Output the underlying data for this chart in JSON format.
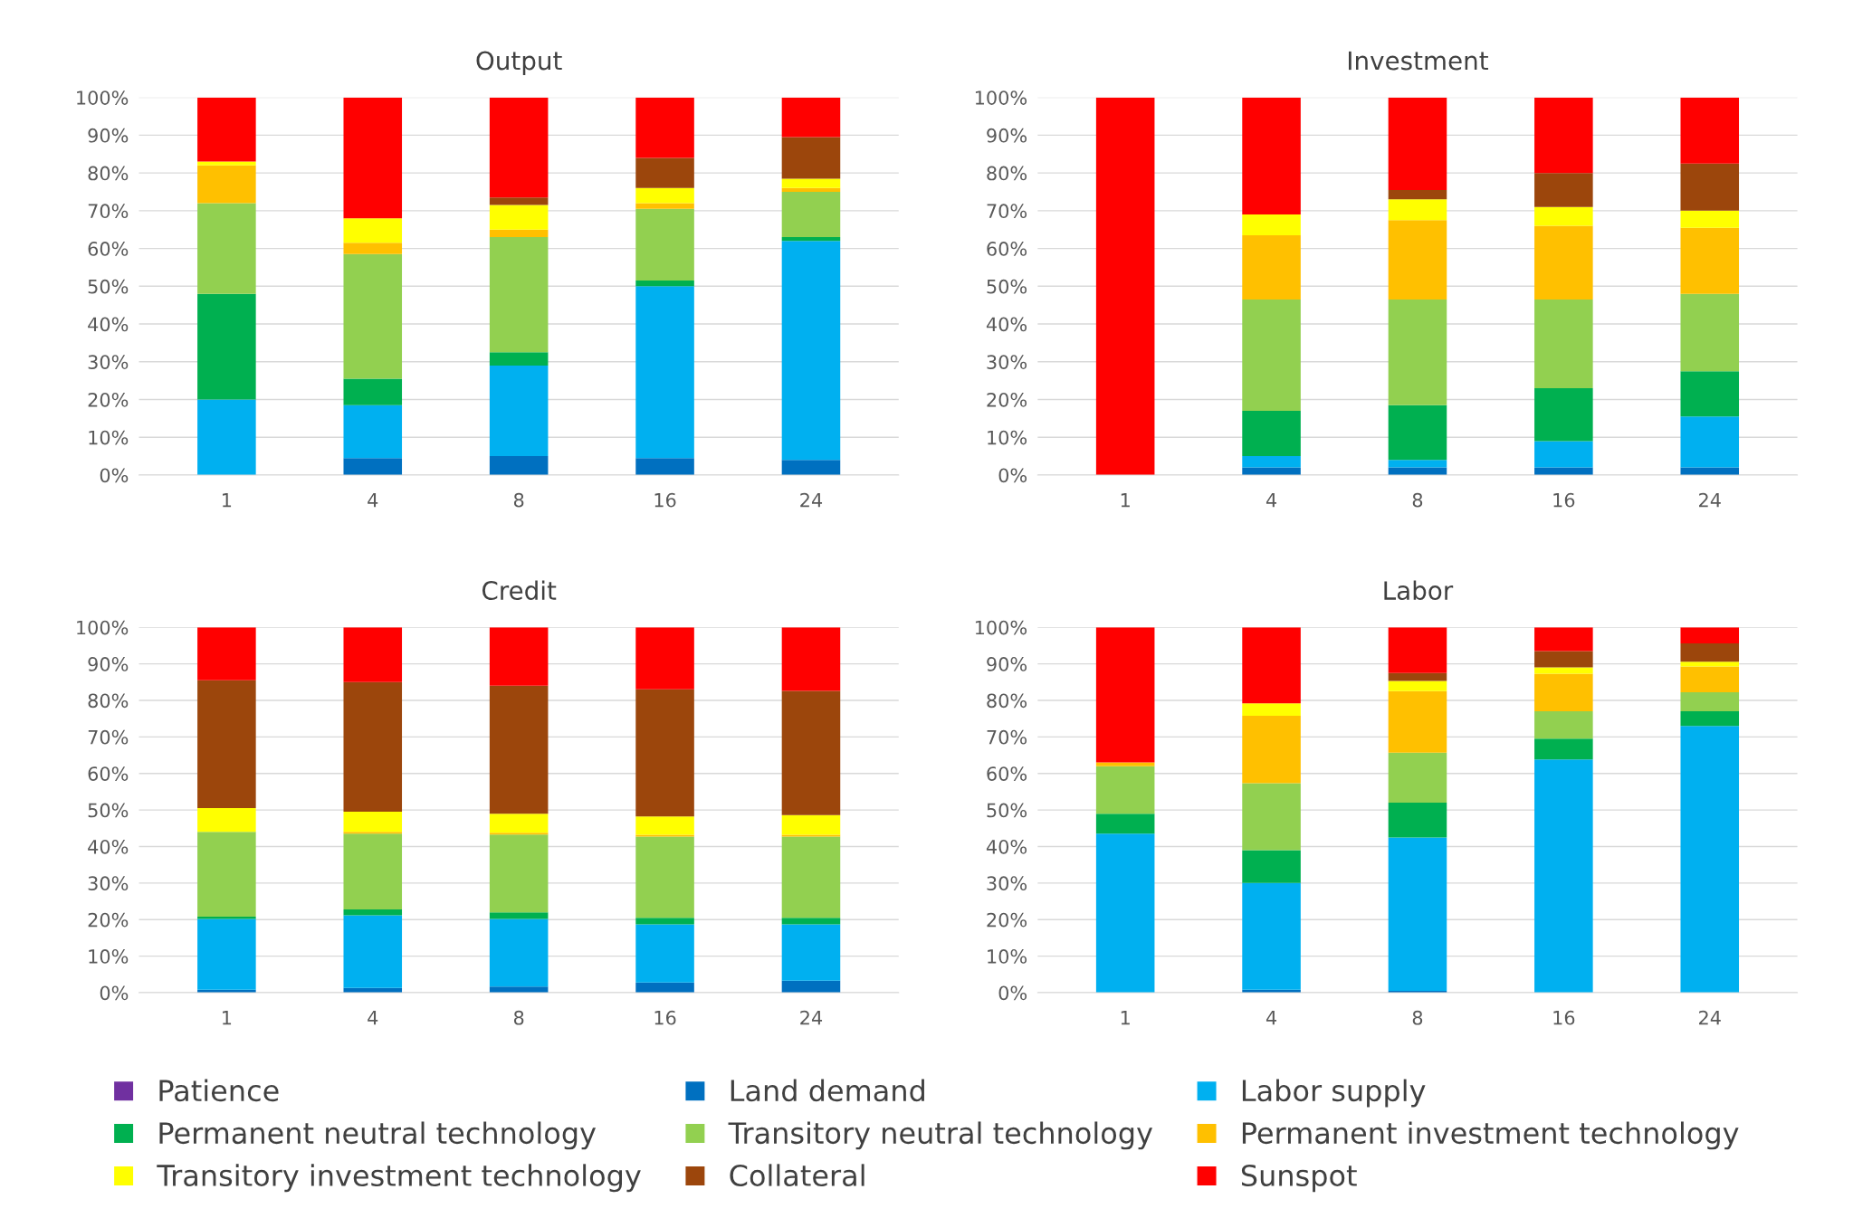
{
  "chart_data": [
    {
      "type": "bar",
      "stacked": true,
      "title": "Output",
      "categories": [
        "1",
        "4",
        "8",
        "16",
        "24"
      ],
      "ylim": [
        0,
        100
      ],
      "yticks": [
        {
          "value": 0,
          "label": "0%"
        },
        {
          "value": 10,
          "label": "10%"
        },
        {
          "value": 20,
          "label": "20%"
        },
        {
          "value": 30,
          "label": "30%"
        },
        {
          "value": 40,
          "label": "40%"
        },
        {
          "value": 50,
          "label": "50%"
        },
        {
          "value": 60,
          "label": "60%"
        },
        {
          "value": 70,
          "label": "70%"
        },
        {
          "value": 80,
          "label": "80%"
        },
        {
          "value": 90,
          "label": "90%"
        },
        {
          "value": 100,
          "label": "100%"
        }
      ],
      "grid": "y",
      "legend": "bottom",
      "series": [
        {
          "name": "Patience",
          "color": "#7030a0",
          "values": [
            0,
            0,
            0,
            0,
            0
          ]
        },
        {
          "name": "Land demand",
          "color": "#0070c0",
          "values": [
            0,
            4.5,
            5,
            4.5,
            4
          ]
        },
        {
          "name": "Labor supply",
          "color": "#00b0f0",
          "values": [
            20,
            14,
            24,
            45.5,
            58
          ]
        },
        {
          "name": "Permanent neutral technology",
          "color": "#00b050",
          "values": [
            28,
            7,
            3.5,
            1.5,
            1
          ]
        },
        {
          "name": "Transitory neutral technology",
          "color": "#92d050",
          "values": [
            24,
            33,
            30.5,
            19,
            12
          ]
        },
        {
          "name": "Permanent investment technology",
          "color": "#ffc000",
          "values": [
            10,
            3,
            2,
            1.5,
            1
          ]
        },
        {
          "name": "Transitory investment technology",
          "color": "#ffff00",
          "values": [
            1,
            6.5,
            6.5,
            4,
            2.5
          ]
        },
        {
          "name": "Collateral",
          "color": "#9c460c",
          "values": [
            0,
            0,
            2,
            8,
            11
          ]
        },
        {
          "name": "Sunspot",
          "color": "#ff0000",
          "values": [
            17,
            32,
            26.5,
            16,
            10.5
          ]
        }
      ]
    },
    {
      "type": "bar",
      "stacked": true,
      "title": "Investment",
      "categories": [
        "1",
        "4",
        "8",
        "16",
        "24"
      ],
      "ylim": [
        0,
        100
      ],
      "yticks": [
        {
          "value": 0,
          "label": "0%"
        },
        {
          "value": 10,
          "label": "10%"
        },
        {
          "value": 20,
          "label": "20%"
        },
        {
          "value": 30,
          "label": "30%"
        },
        {
          "value": 40,
          "label": "40%"
        },
        {
          "value": 50,
          "label": "50%"
        },
        {
          "value": 60,
          "label": "60%"
        },
        {
          "value": 70,
          "label": "70%"
        },
        {
          "value": 80,
          "label": "80%"
        },
        {
          "value": 90,
          "label": "90%"
        },
        {
          "value": 100,
          "label": "100%"
        }
      ],
      "grid": "y",
      "series": [
        {
          "color": "#7030a0",
          "values": [
            0,
            0,
            0,
            0,
            0
          ]
        },
        {
          "color": "#0070c0",
          "values": [
            0,
            2,
            2,
            2,
            2
          ]
        },
        {
          "color": "#00b0f0",
          "values": [
            0,
            3,
            2,
            7,
            13.5
          ]
        },
        {
          "color": "#00b050",
          "values": [
            0,
            12,
            14.5,
            14,
            12
          ]
        },
        {
          "color": "#92d050",
          "values": [
            0,
            29.5,
            28,
            23.5,
            20.5
          ]
        },
        {
          "color": "#ffc000",
          "values": [
            0,
            17,
            21,
            19.5,
            17.5
          ]
        },
        {
          "color": "#ffff00",
          "values": [
            0,
            5.5,
            5.5,
            5,
            4.5
          ]
        },
        {
          "color": "#9c460c",
          "values": [
            0,
            0,
            2.5,
            9,
            12.5
          ]
        },
        {
          "color": "#ff0000",
          "values": [
            100,
            31,
            24.5,
            20,
            17.5
          ]
        }
      ]
    },
    {
      "type": "bar",
      "stacked": true,
      "title": "Credit",
      "categories": [
        "1",
        "4",
        "8",
        "16",
        "24"
      ],
      "ylim": [
        0,
        100
      ],
      "yticks": [
        {
          "value": 0,
          "label": "0%"
        },
        {
          "value": 10,
          "label": "10%"
        },
        {
          "value": 20,
          "label": "20%"
        },
        {
          "value": 30,
          "label": "30%"
        },
        {
          "value": 40,
          "label": "40%"
        },
        {
          "value": 50,
          "label": "50%"
        },
        {
          "value": 60,
          "label": "60%"
        },
        {
          "value": 70,
          "label": "70%"
        },
        {
          "value": 80,
          "label": "80%"
        },
        {
          "value": 90,
          "label": "90%"
        },
        {
          "value": 100,
          "label": "100%"
        }
      ],
      "grid": "y",
      "series": [
        {
          "color": "#7030a0",
          "values": [
            0,
            0,
            0,
            0,
            0
          ]
        },
        {
          "color": "#0070c0",
          "values": [
            0.8,
            1.3,
            1.7,
            2.8,
            3.3
          ]
        },
        {
          "color": "#00b0f0",
          "values": [
            19.4,
            19.9,
            18.5,
            15.9,
            15.4
          ]
        },
        {
          "color": "#00b050",
          "values": [
            0.6,
            1.6,
            1.8,
            1.8,
            1.8
          ]
        },
        {
          "color": "#92d050",
          "values": [
            23.2,
            20.7,
            21.3,
            22.2,
            22.2
          ]
        },
        {
          "color": "#ffc000",
          "values": [
            0,
            0.5,
            0.5,
            0.5,
            0.5
          ]
        },
        {
          "color": "#ffff00",
          "values": [
            6.5,
            5.5,
            5.2,
            5,
            5.4
          ]
        },
        {
          "color": "#9c460c",
          "values": [
            35,
            35.5,
            35,
            34.8,
            34
          ]
        },
        {
          "color": "#ff0000",
          "values": [
            14.5,
            15,
            16,
            17,
            17.4
          ]
        }
      ]
    },
    {
      "type": "bar",
      "stacked": true,
      "title": "Labor",
      "categories": [
        "1",
        "4",
        "8",
        "16",
        "24"
      ],
      "ylim": [
        0,
        100
      ],
      "yticks": [
        {
          "value": 0,
          "label": "0%"
        },
        {
          "value": 10,
          "label": "10%"
        },
        {
          "value": 20,
          "label": "20%"
        },
        {
          "value": 30,
          "label": "30%"
        },
        {
          "value": 40,
          "label": "40%"
        },
        {
          "value": 50,
          "label": "50%"
        },
        {
          "value": 60,
          "label": "60%"
        },
        {
          "value": 70,
          "label": "70%"
        },
        {
          "value": 80,
          "label": "80%"
        },
        {
          "value": 90,
          "label": "90%"
        },
        {
          "value": 100,
          "label": "100%"
        }
      ],
      "grid": "y",
      "series": [
        {
          "color": "#7030a0",
          "values": [
            0,
            0,
            0,
            0,
            0
          ]
        },
        {
          "color": "#0070c0",
          "values": [
            0,
            0.8,
            0.5,
            0,
            0
          ]
        },
        {
          "color": "#00b0f0",
          "values": [
            43.5,
            29.2,
            42,
            63.8,
            73
          ]
        },
        {
          "color": "#00b050",
          "values": [
            5.5,
            9,
            9.5,
            5.7,
            4
          ]
        },
        {
          "color": "#92d050",
          "values": [
            13,
            18.3,
            13.7,
            7.5,
            5.2
          ]
        },
        {
          "color": "#ffc000",
          "values": [
            1,
            18.5,
            16.8,
            10.3,
            7.1
          ]
        },
        {
          "color": "#ffff00",
          "values": [
            0,
            3.4,
            2.8,
            1.7,
            1.3
          ]
        },
        {
          "color": "#9c460c",
          "values": [
            0,
            0,
            2.2,
            4.5,
            5
          ]
        },
        {
          "color": "#ff0000",
          "values": [
            37,
            20.8,
            12.5,
            6.5,
            4.4
          ]
        }
      ]
    }
  ]
}
